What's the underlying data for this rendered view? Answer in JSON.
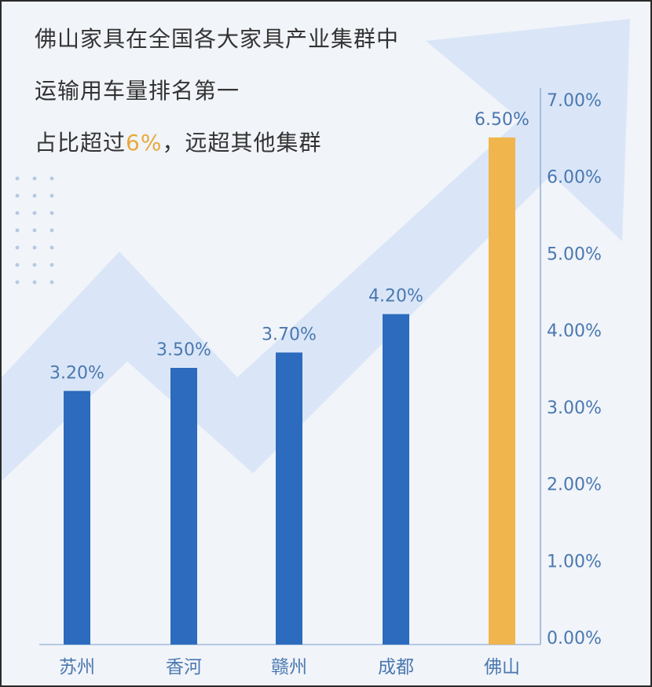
{
  "headline": {
    "line1": "佛山家具在全国各大家具产业集群中",
    "line2": "运输用车量排名第一",
    "line3_prefix": "占比超过",
    "line3_accent": "6%",
    "line3_suffix": "，远超其他集群"
  },
  "colors": {
    "bar": "#2c6bbd",
    "highlight_bar": "#f0b54c",
    "label": "#4a78b0",
    "axis": "#8fb0d6",
    "accent_text": "#e8a93b",
    "background": "#f1f4f9",
    "arrow": "#d6e3f7"
  },
  "chart_data": {
    "type": "bar",
    "categories": [
      "苏州",
      "香河",
      "赣州",
      "成都",
      "佛山"
    ],
    "values": [
      3.2,
      3.5,
      3.7,
      4.2,
      6.5
    ],
    "value_labels": [
      "3.20%",
      "3.50%",
      "3.70%",
      "4.20%",
      "6.50%"
    ],
    "highlight_index": 4,
    "y_axis_position": "right",
    "ylim": [
      0,
      7
    ],
    "yticks": [
      0,
      1,
      2,
      3,
      4,
      5,
      6,
      7
    ],
    "ytick_labels": [
      "0.00%",
      "1.00%",
      "2.00%",
      "3.00%",
      "4.00%",
      "5.00%",
      "6.00%",
      "7.00%"
    ],
    "grid": false,
    "title": "",
    "xlabel": "",
    "ylabel": ""
  }
}
